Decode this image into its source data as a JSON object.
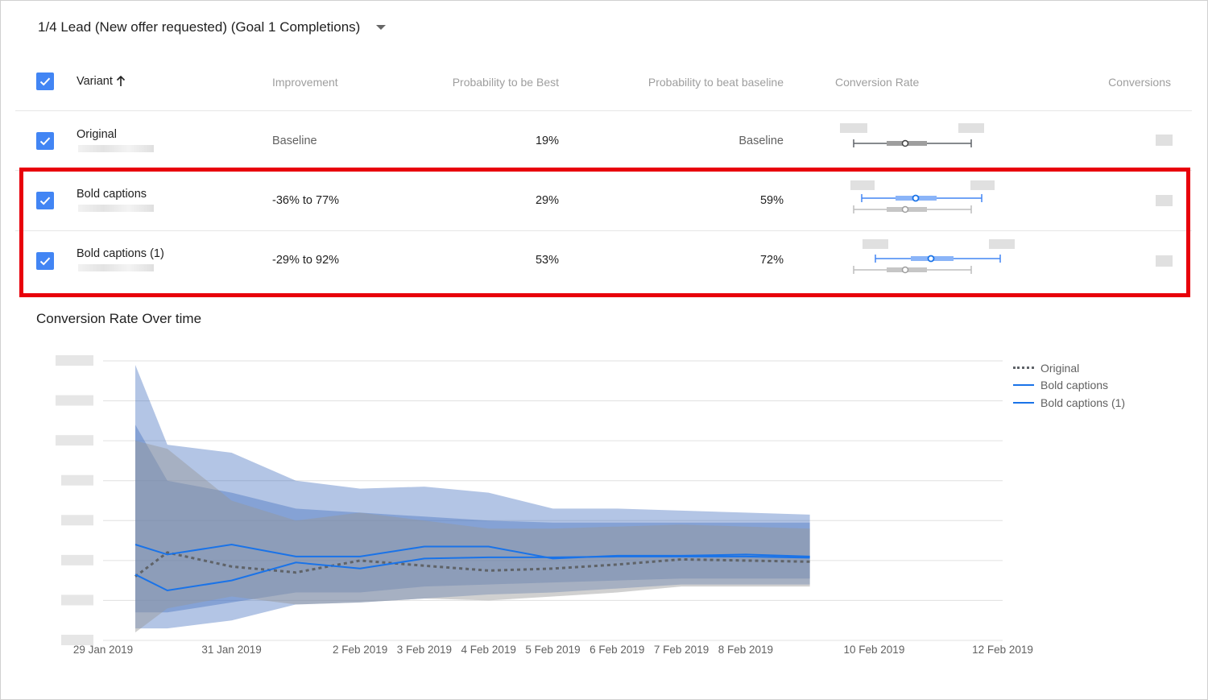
{
  "objective": {
    "label": "1/4 Lead (New offer requested) (Goal 1 Completions)",
    "icon": "caret-down-icon"
  },
  "table": {
    "headers": {
      "variant": "Variant",
      "improvement": "Improvement",
      "prob_best": "Probability to be Best",
      "prob_baseline": "Probability to beat baseline",
      "conversion_rate": "Conversion Rate",
      "conversions": "Conversions"
    },
    "rows": [
      {
        "name": "Original",
        "improvement": "Baseline",
        "prob_best": "19%",
        "prob_baseline": "Baseline",
        "checked": true
      },
      {
        "name": "Bold captions",
        "improvement": "-36% to 77%",
        "prob_best": "29%",
        "prob_baseline": "59%",
        "checked": true
      },
      {
        "name": "Bold captions (1)",
        "improvement": "-29% to 92%",
        "prob_best": "53%",
        "prob_baseline": "72%",
        "checked": true
      }
    ]
  },
  "colors": {
    "accent": "#4285f4",
    "highlight": "#e8000b",
    "series_blue": "#1a73e8",
    "series_gray": "#5f6368"
  },
  "chart_title": "Conversion Rate Over time",
  "chart_data": {
    "type": "line",
    "x": [
      "29 Jan 2019",
      "30 Jan 2019",
      "31 Jan 2019",
      "1 Feb 2019",
      "2 Feb 2019",
      "3 Feb 2019",
      "4 Feb 2019",
      "5 Feb 2019",
      "6 Feb 2019",
      "7 Feb 2019",
      "8 Feb 2019",
      "9 Feb 2019"
    ],
    "x_tick_labels": [
      "29 Jan 2019",
      "31 Jan 2019",
      "2 Feb 2019",
      "3 Feb 2019",
      "4 Feb 2019",
      "5 Feb 2019",
      "6 Feb 2019",
      "7 Feb 2019",
      "8 Feb 2019",
      "10 Feb 2019",
      "12 Feb 2019"
    ],
    "x_domain": [
      "29 Jan 2019",
      "12 Feb 2019"
    ],
    "y_axis_labels_visible": false,
    "y_range": [
      0,
      7
    ],
    "grid": true,
    "legend_position": "right",
    "series": [
      {
        "name": "Original",
        "style": "dashed",
        "color": "#5f6368",
        "values": [
          1.6,
          2.2,
          1.85,
          1.7,
          2.0,
          1.87,
          1.75,
          1.8,
          1.9,
          2.03,
          2.0,
          1.97
        ],
        "lower": [
          0.2,
          0.8,
          1.1,
          0.9,
          0.95,
          1.05,
          1.0,
          1.1,
          1.2,
          1.35,
          1.35,
          1.35
        ],
        "upper": [
          5.0,
          4.8,
          3.5,
          3.0,
          3.2,
          3.0,
          2.8,
          2.8,
          2.85,
          2.9,
          2.85,
          2.8
        ]
      },
      {
        "name": "Bold captions",
        "style": "solid",
        "color": "#1a73e8",
        "values": [
          1.65,
          1.25,
          1.5,
          1.95,
          1.8,
          2.05,
          2.08,
          2.08,
          2.1,
          2.1,
          2.1,
          2.07
        ],
        "lower": [
          0.3,
          0.3,
          0.5,
          0.9,
          0.95,
          1.05,
          1.15,
          1.2,
          1.3,
          1.4,
          1.4,
          1.4
        ],
        "upper": [
          5.4,
          4.0,
          3.7,
          3.3,
          3.2,
          3.1,
          3.0,
          2.95,
          2.95,
          2.95,
          2.95,
          2.95
        ]
      },
      {
        "name": "Bold captions (1)",
        "style": "solid",
        "color": "#1a73e8",
        "values": [
          2.4,
          2.15,
          2.4,
          2.1,
          2.1,
          2.35,
          2.35,
          2.05,
          2.12,
          2.12,
          2.15,
          2.1
        ],
        "lower": [
          0.7,
          0.7,
          0.95,
          1.2,
          1.2,
          1.35,
          1.4,
          1.45,
          1.5,
          1.55,
          1.55,
          1.55
        ],
        "upper": [
          6.9,
          4.9,
          4.7,
          4.0,
          3.8,
          3.85,
          3.7,
          3.3,
          3.3,
          3.25,
          3.2,
          3.15
        ]
      }
    ]
  }
}
